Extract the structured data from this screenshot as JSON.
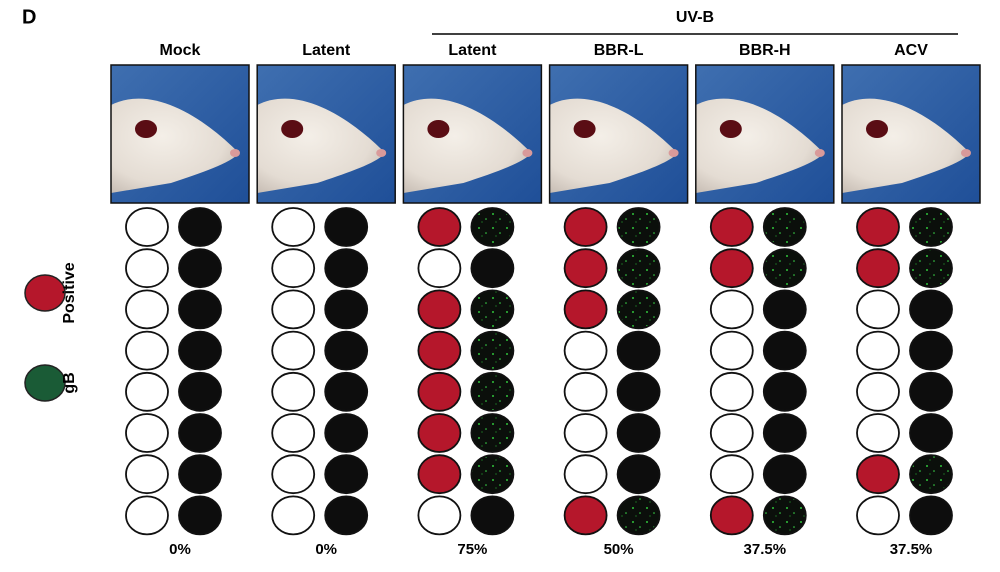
{
  "panel_label": "D",
  "group_label": "UV-B",
  "legend": {
    "positive": "Positive",
    "gb": "gB"
  },
  "columns": [
    {
      "label": "Mock",
      "positive": [
        false,
        false,
        false,
        false,
        false,
        false,
        false,
        false
      ],
      "percent": "0%"
    },
    {
      "label": "Latent",
      "positive": [
        false,
        false,
        false,
        false,
        false,
        false,
        false,
        false
      ],
      "percent": "0%"
    },
    {
      "label": "Latent",
      "positive": [
        true,
        false,
        true,
        true,
        true,
        true,
        true,
        false
      ],
      "percent": "75%"
    },
    {
      "label": "BBR-L",
      "positive": [
        true,
        true,
        true,
        false,
        false,
        false,
        false,
        true
      ],
      "percent": "50%"
    },
    {
      "label": "BBR-H",
      "positive": [
        true,
        true,
        false,
        false,
        false,
        false,
        false,
        true
      ],
      "percent": "37.5%"
    },
    {
      "label": "ACV",
      "positive": [
        true,
        true,
        false,
        false,
        false,
        false,
        true,
        false
      ],
      "percent": "37.5%"
    }
  ]
}
